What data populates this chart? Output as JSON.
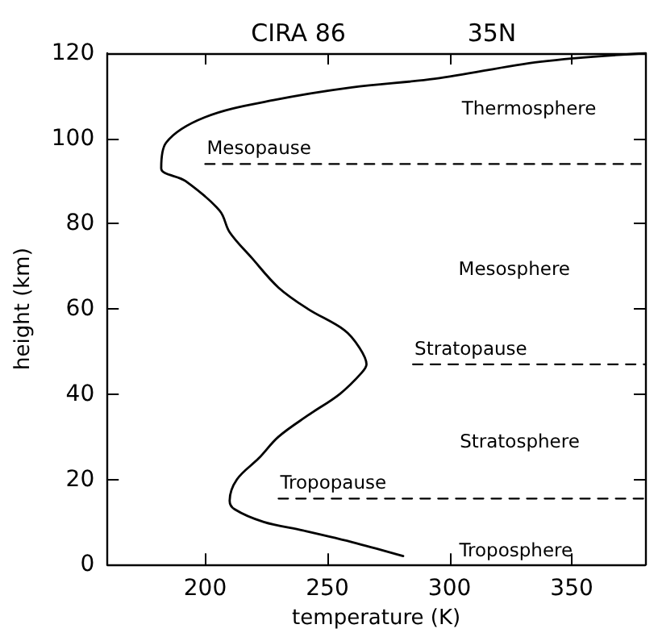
{
  "chart_data": {
    "type": "line",
    "title": "CIRA 86",
    "subtitle": "35N",
    "xlabel": "temperature (K)",
    "ylabel": "height (km)",
    "xlim": [
      160,
      380
    ],
    "xticks": [
      200,
      250,
      300,
      350
    ],
    "ylim": [
      0,
      120
    ],
    "yticks": [
      0,
      20,
      40,
      60,
      80,
      100,
      120
    ],
    "series": [
      {
        "color": "#000000",
        "line_style": "solid",
        "x": [
          281,
          262,
          240,
          224,
          212,
          210,
          213,
          222,
          230,
          242,
          255,
          264,
          266,
          263,
          257,
          242,
          230,
          219,
          210,
          206,
          192,
          182,
          184,
          200,
          228,
          260,
          294,
          337,
          380
        ],
        "values": [
          2,
          5,
          8,
          10,
          13,
          15,
          20,
          25,
          30,
          35,
          40,
          45,
          47,
          51,
          55,
          60,
          65,
          72,
          78,
          83,
          90,
          93,
          99,
          105,
          109,
          112,
          114,
          118,
          120
        ]
      },
      {
        "name": "Mesopause",
        "color": "#000000",
        "line_style": "dashed",
        "x": [
          200,
          380
        ],
        "values": [
          94,
          94
        ]
      },
      {
        "name": "Stratopause",
        "color": "#000000",
        "line_style": "dashed",
        "x": [
          285,
          380
        ],
        "values": [
          47,
          47
        ]
      },
      {
        "name": "Tropopause",
        "color": "#000000",
        "line_style": "dashed",
        "x": [
          230,
          380
        ],
        "values": [
          15.5,
          15.5
        ]
      }
    ],
    "annotations": [
      "Thermosphere",
      "Mesosphere",
      "Stratosphere",
      "Troposphere"
    ],
    "grid": false,
    "marker": "none"
  }
}
